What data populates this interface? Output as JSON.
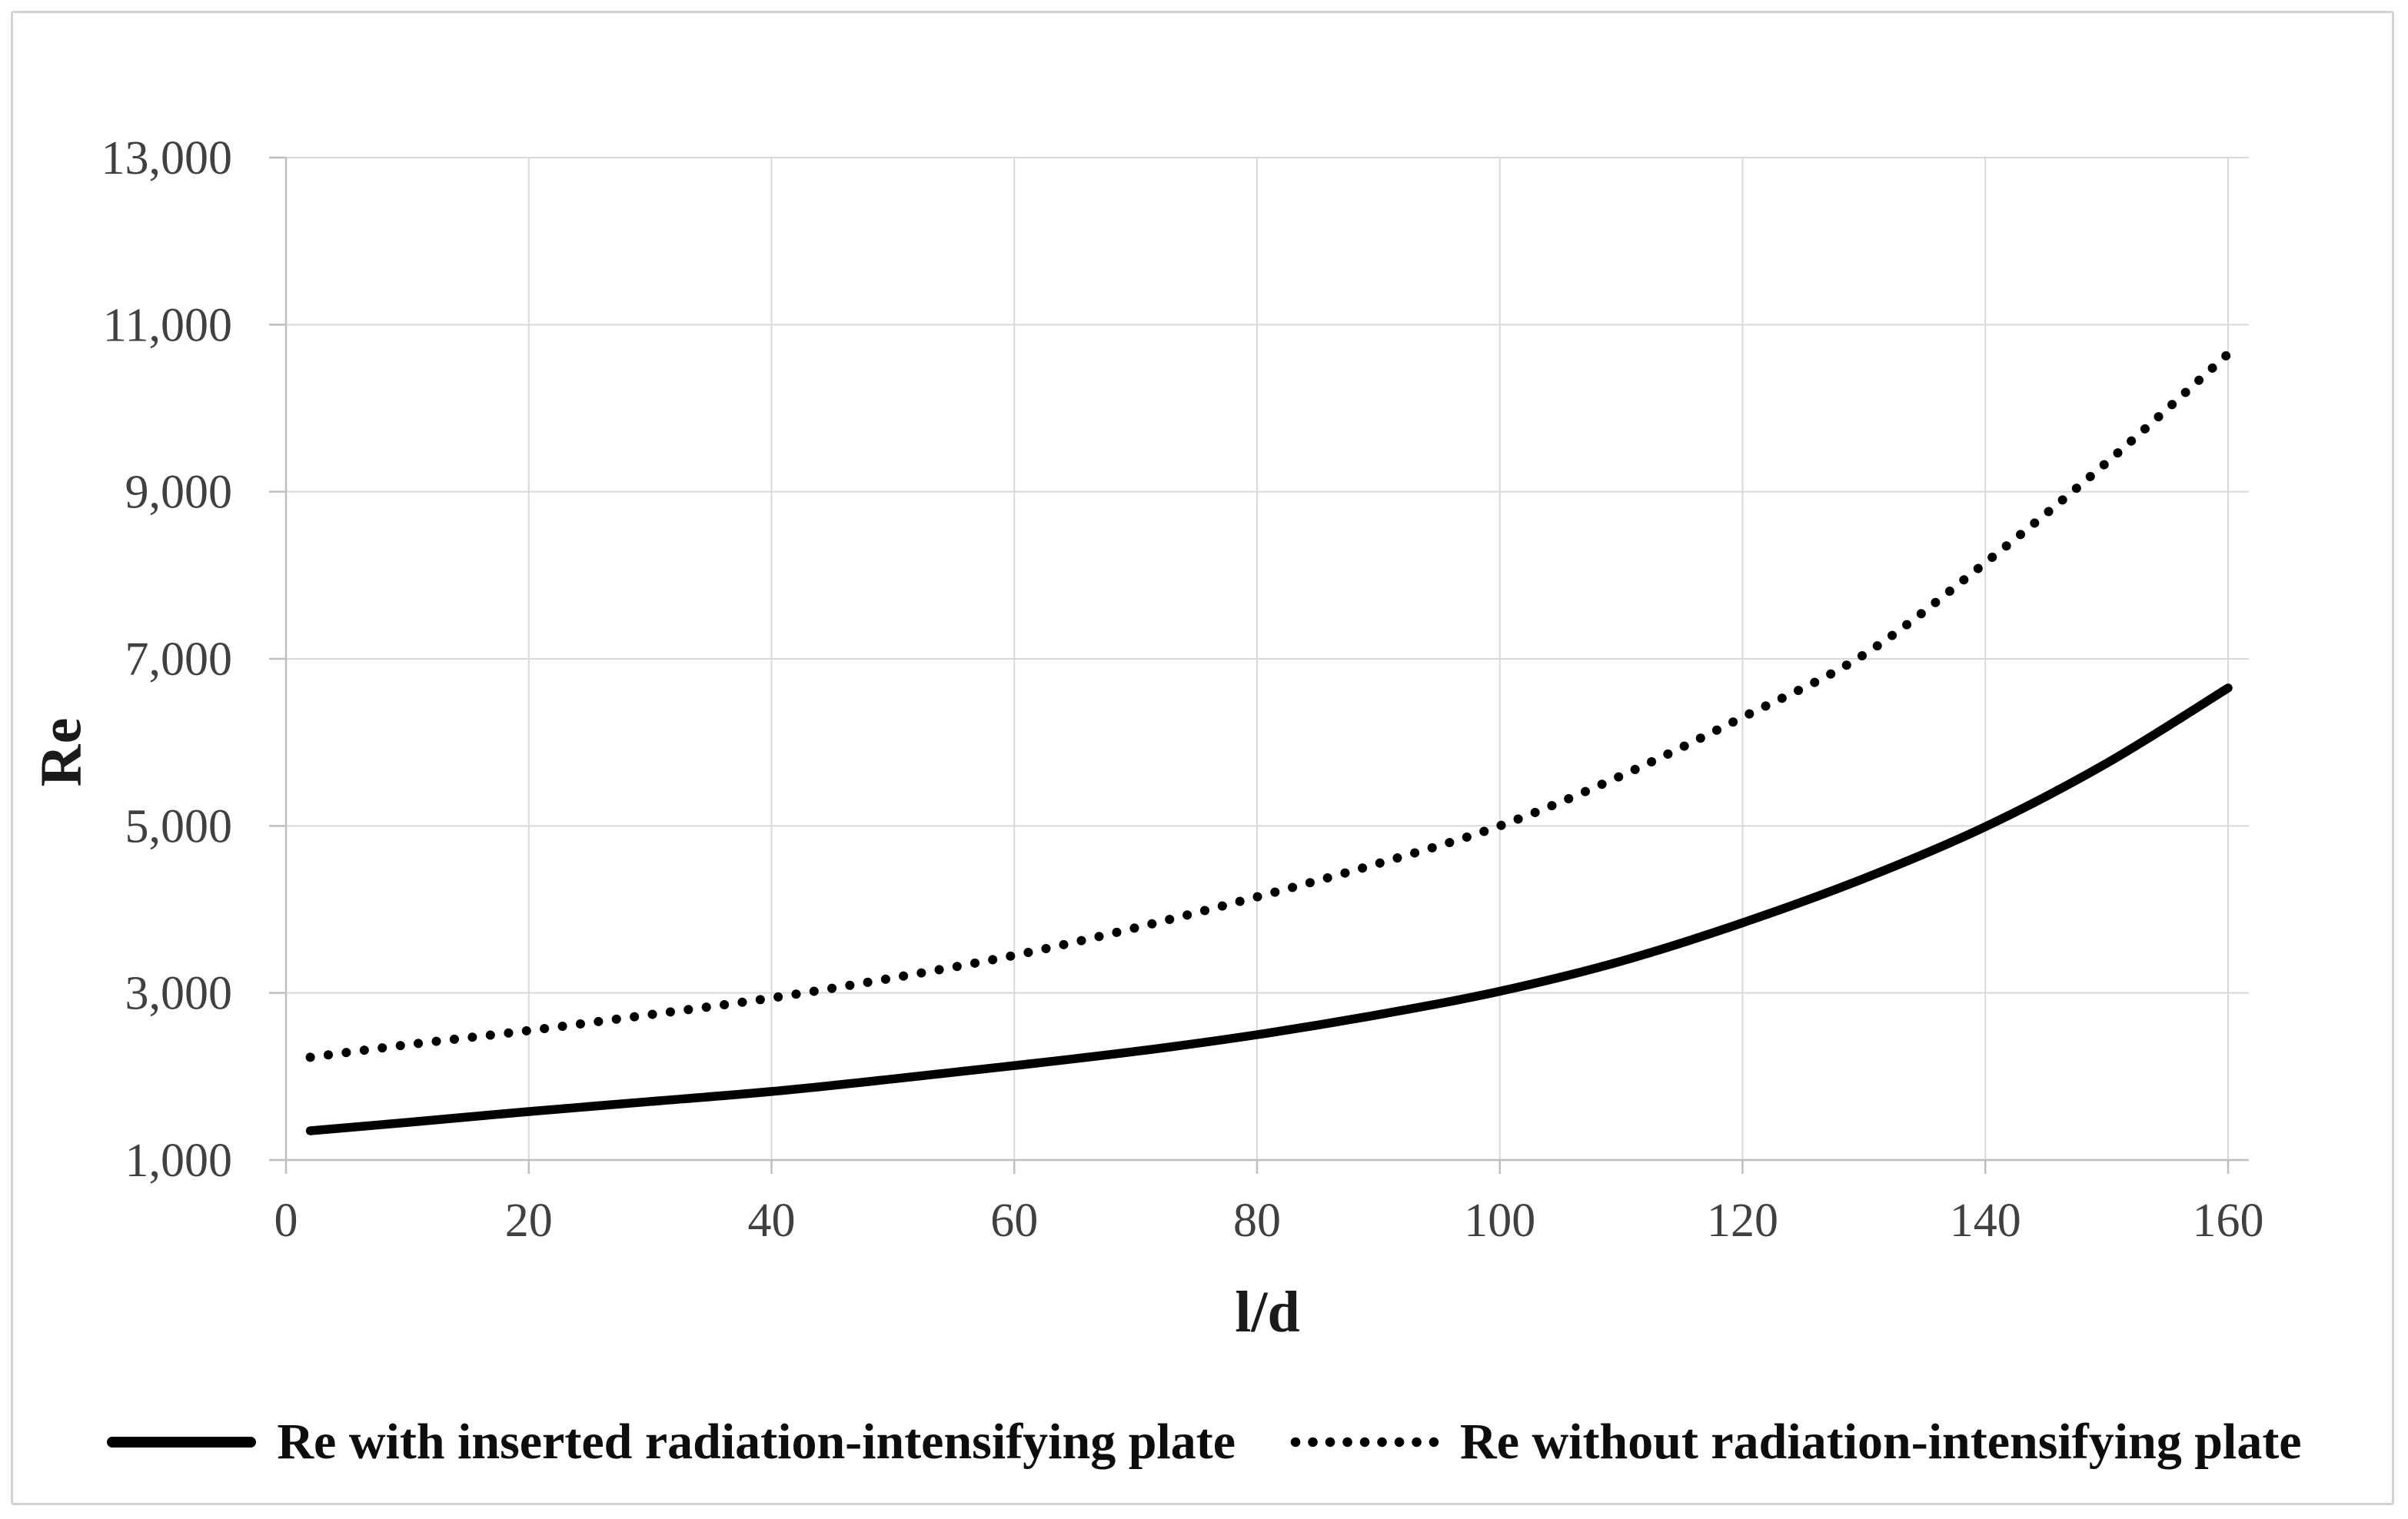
{
  "figure": {
    "background_color": "#ffffff",
    "border_color": "#d2d2d2"
  },
  "chart_data": {
    "type": "line",
    "title": "",
    "xlabel": "l/d",
    "ylabel": "Re",
    "xlim": [
      0,
      163.5
    ],
    "ylim": [
      1000,
      13000
    ],
    "x_ticks": [
      0,
      20,
      40,
      60,
      80,
      100,
      120,
      140,
      160
    ],
    "x_tick_labels": [
      "0",
      "20",
      "40",
      "60",
      "80",
      "100",
      "120",
      "140",
      "160"
    ],
    "y_ticks": [
      1000,
      3000,
      5000,
      7000,
      9000,
      11000,
      13000
    ],
    "y_tick_labels": [
      "1,000",
      "3,000",
      "5,000",
      "7,000",
      "9,000",
      "11,000",
      "13,000"
    ],
    "grid": true,
    "gridline_color": "#d9d9d9",
    "axis_line_color": "#bfbfbf",
    "tick_label_color": "#404040",
    "legend_position": "bottom",
    "x": [
      2,
      10,
      20,
      30,
      40,
      50,
      60,
      70,
      80,
      90,
      100,
      110,
      120,
      130,
      140,
      150,
      160
    ],
    "series": [
      {
        "name": "Re with inserted radiation-intensifying plate",
        "style": "solid",
        "color": "#000000",
        "values": [
          1350,
          1450,
          1580,
          1700,
          1820,
          1970,
          2130,
          2300,
          2500,
          2740,
          3020,
          3380,
          3840,
          4370,
          4990,
          5750,
          6650
        ]
      },
      {
        "name": "Re without radiation-intensifying plate",
        "style": "dotted",
        "color": "#000000",
        "values": [
          2230,
          2380,
          2550,
          2740,
          2940,
          3180,
          3450,
          3780,
          4150,
          4550,
          5000,
          5600,
          6300,
          7050,
          8150,
          9350,
          10650
        ]
      }
    ]
  }
}
